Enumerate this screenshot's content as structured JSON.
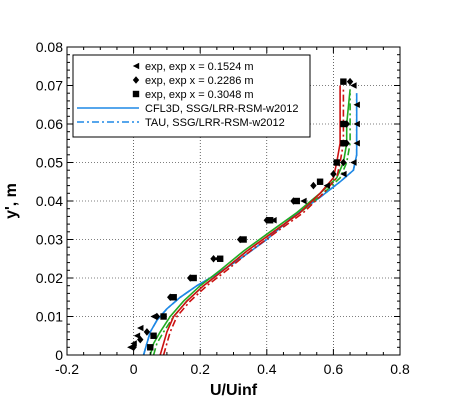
{
  "chart_data": {
    "type": "scatter",
    "xlabel": "U/Uinf",
    "ylabel": "y', m",
    "xlim": [
      -0.2,
      0.8
    ],
    "ylim": [
      0,
      0.08
    ],
    "xticks": [
      -0.2,
      0,
      0.2,
      0.4,
      0.6,
      0.8
    ],
    "yticks": [
      0,
      0.01,
      0.02,
      0.03,
      0.04,
      0.05,
      0.06,
      0.07,
      0.08
    ],
    "xtick_labels": [
      "-0.2",
      "0",
      "0.2",
      "0.4",
      "0.6",
      "0.8"
    ],
    "ytick_labels": [
      "0",
      "0.01",
      "0.02",
      "0.03",
      "0.04",
      "0.05",
      "0.06",
      "0.07",
      "0.08"
    ],
    "grid": true,
    "legend": {
      "placement": "top-left",
      "entries": [
        "exp, exp x = 0.1524 m",
        "exp, exp x = 0.2286 m",
        "exp, exp x = 0.3048 m",
        "CFL3D, SSG/LRR-RSM-w2012",
        "TAU, SSG/LRR-RSM-w2012"
      ]
    },
    "markers": [
      {
        "name": "exp, exp x = 0.1524 m",
        "shape": "triangle-left",
        "color": "#000000",
        "x": [
          -0.01,
          0.0,
          0.01,
          0.02,
          0.06,
          0.12,
          0.18,
          0.25,
          0.33,
          0.42,
          0.51,
          0.58,
          0.63,
          0.66,
          0.67,
          0.67,
          0.67,
          0.66
        ],
        "y": [
          0.002,
          0.003,
          0.005,
          0.007,
          0.01,
          0.015,
          0.02,
          0.025,
          0.03,
          0.035,
          0.04,
          0.044,
          0.047,
          0.05,
          0.055,
          0.06,
          0.065,
          0.07
        ]
      },
      {
        "name": "exp, exp x = 0.2286 m",
        "shape": "diamond",
        "color": "#000000",
        "x": [
          0.0,
          0.02,
          0.04,
          0.07,
          0.11,
          0.17,
          0.24,
          0.32,
          0.4,
          0.48,
          0.54,
          0.6,
          0.63,
          0.64,
          0.64,
          0.65
        ],
        "y": [
          0.002,
          0.004,
          0.006,
          0.01,
          0.015,
          0.02,
          0.025,
          0.03,
          0.035,
          0.04,
          0.044,
          0.047,
          0.05,
          0.055,
          0.06,
          0.071
        ]
      },
      {
        "name": "exp, exp x = 0.3048 m",
        "shape": "square",
        "color": "#000000",
        "x": [
          0.05,
          0.06,
          0.09,
          0.12,
          0.18,
          0.26,
          0.33,
          0.41,
          0.49,
          0.56,
          0.61,
          0.63,
          0.63,
          0.63
        ],
        "y": [
          0.002,
          0.005,
          0.01,
          0.015,
          0.02,
          0.025,
          0.03,
          0.035,
          0.04,
          0.045,
          0.05,
          0.055,
          0.06,
          0.071
        ]
      }
    ],
    "lines": [
      {
        "name": "CFL3D, SSG/LRR-RSM-w2012",
        "style": "solid",
        "color": "#1e88e5",
        "x": [
          0.03,
          0.04,
          0.05,
          0.07,
          0.1,
          0.14,
          0.19,
          0.25,
          0.32,
          0.4,
          0.48,
          0.56,
          0.62,
          0.66,
          0.67,
          0.67,
          0.67
        ],
        "y": [
          0.0,
          0.003,
          0.006,
          0.009,
          0.012,
          0.015,
          0.018,
          0.021,
          0.025,
          0.03,
          0.036,
          0.041,
          0.045,
          0.048,
          0.052,
          0.06,
          0.068
        ]
      },
      {
        "name": "TAU, SSG/LRR-RSM-w2012",
        "style": "dashdot",
        "color": "#1e88e5",
        "x": [
          0.03,
          0.04,
          0.05,
          0.07,
          0.1,
          0.14,
          0.19,
          0.25,
          0.32,
          0.4,
          0.48,
          0.56,
          0.62,
          0.66,
          0.67,
          0.67,
          0.67
        ],
        "y": [
          0.0,
          0.003,
          0.006,
          0.009,
          0.012,
          0.015,
          0.018,
          0.021,
          0.025,
          0.03,
          0.036,
          0.041,
          0.045,
          0.048,
          0.052,
          0.06,
          0.068
        ]
      },
      {
        "name": "",
        "style": "solid",
        "color": "#22aa22",
        "x": [
          0.05,
          0.06,
          0.08,
          0.11,
          0.15,
          0.2,
          0.26,
          0.33,
          0.41,
          0.49,
          0.56,
          0.61,
          0.63,
          0.64,
          0.64,
          0.65
        ],
        "y": [
          0.0,
          0.003,
          0.006,
          0.01,
          0.014,
          0.018,
          0.022,
          0.027,
          0.032,
          0.037,
          0.042,
          0.046,
          0.05,
          0.055,
          0.06,
          0.069
        ]
      },
      {
        "name": "",
        "style": "dashdot",
        "color": "#22aa22",
        "x": [
          0.06,
          0.07,
          0.09,
          0.12,
          0.16,
          0.21,
          0.27,
          0.34,
          0.42,
          0.5,
          0.57,
          0.62,
          0.64,
          0.65,
          0.65,
          0.65
        ],
        "y": [
          0.0,
          0.003,
          0.006,
          0.01,
          0.014,
          0.018,
          0.022,
          0.027,
          0.032,
          0.037,
          0.042,
          0.046,
          0.05,
          0.055,
          0.06,
          0.068
        ]
      },
      {
        "name": "",
        "style": "solid",
        "color": "#cc1111",
        "x": [
          0.08,
          0.09,
          0.1,
          0.12,
          0.16,
          0.21,
          0.27,
          0.34,
          0.42,
          0.5,
          0.56,
          0.6,
          0.61,
          0.62,
          0.62,
          0.62
        ],
        "y": [
          0.0,
          0.003,
          0.006,
          0.01,
          0.014,
          0.018,
          0.022,
          0.027,
          0.032,
          0.037,
          0.042,
          0.046,
          0.05,
          0.055,
          0.06,
          0.07
        ]
      },
      {
        "name": "",
        "style": "dashdot",
        "color": "#cc1111",
        "x": [
          0.09,
          0.1,
          0.11,
          0.13,
          0.17,
          0.22,
          0.28,
          0.35,
          0.43,
          0.51,
          0.57,
          0.61,
          0.62,
          0.63,
          0.63,
          0.63
        ],
        "y": [
          0.0,
          0.003,
          0.006,
          0.01,
          0.014,
          0.018,
          0.022,
          0.027,
          0.032,
          0.037,
          0.042,
          0.046,
          0.05,
          0.055,
          0.06,
          0.069
        ]
      }
    ]
  }
}
